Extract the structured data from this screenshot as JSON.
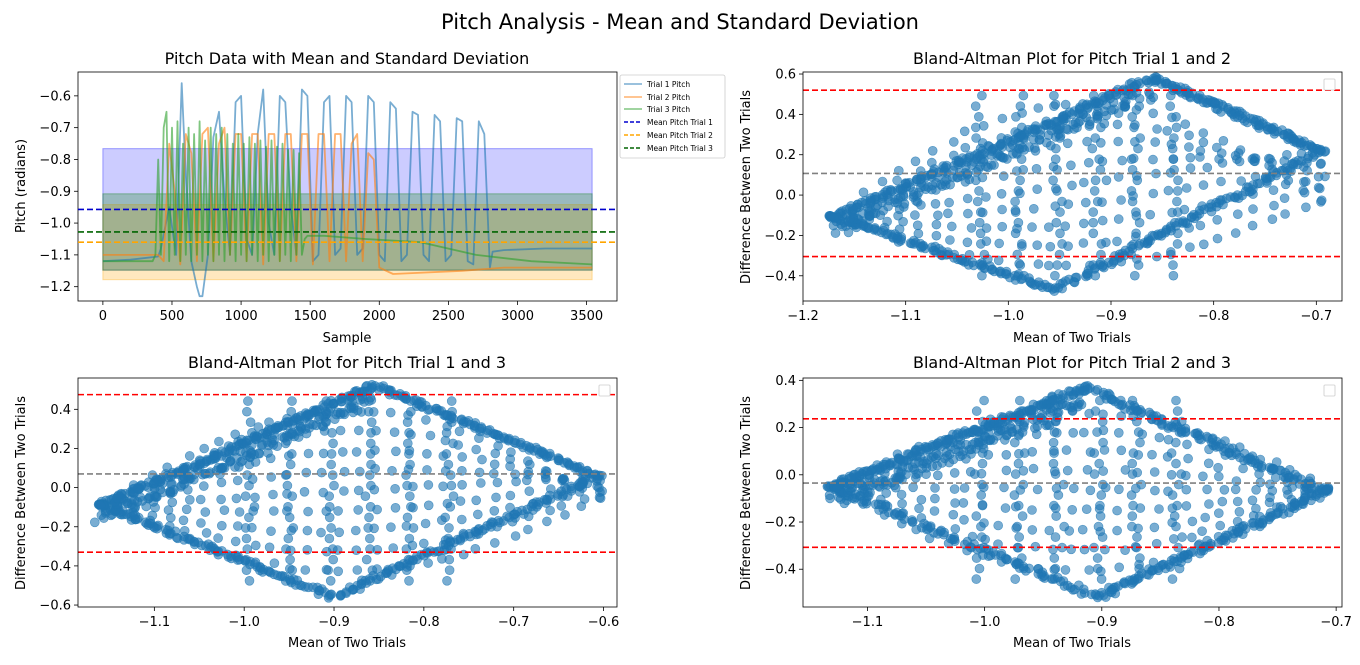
{
  "figure": {
    "suptitle": "Pitch Analysis - Mean and Standard Deviation"
  },
  "chart_data": [
    {
      "id": "p1",
      "type": "line",
      "title": "Pitch Data with Mean and Standard Deviation",
      "xlabel": "Sample",
      "ylabel": "Pitch (radians)",
      "xlim": [
        -180,
        3720
      ],
      "ylim": [
        -1.245,
        -0.525
      ],
      "xticks": [
        0,
        500,
        1000,
        1500,
        2000,
        2500,
        3000,
        3500
      ],
      "yticks": [
        -1.2,
        -1.1,
        -1.0,
        -0.9,
        -0.8,
        -0.7,
        -0.6
      ],
      "ytick_labels": [
        "−1.2",
        "−1.1",
        "−1.0",
        "−0.9",
        "−0.8",
        "−0.7",
        "−0.6"
      ],
      "grid": false,
      "legend_placement": "outside right top",
      "series": [
        {
          "name": "Trial 1 Pitch",
          "color": "#1f77b4",
          "opacity": 0.6,
          "x": [
            0,
            200,
            400,
            420,
            480,
            530,
            570,
            600,
            640,
            680,
            700,
            720,
            760,
            800,
            840,
            880,
            920,
            960,
            1000,
            1040,
            1080,
            1120,
            1160,
            1200,
            1240,
            1280,
            1320,
            1360,
            1400,
            1440,
            1480,
            1520,
            1560,
            1600,
            1640,
            1680,
            1720,
            1760,
            1800,
            1840,
            1880,
            1920,
            1960,
            2000,
            2040,
            2080,
            2120,
            2160,
            2200,
            2240,
            2280,
            2320,
            2360,
            2400,
            2440,
            2480,
            2520,
            2560,
            2600,
            2640,
            2680,
            2720,
            2760,
            2800,
            2820,
            2900,
            3200,
            3540
          ],
          "y": [
            -1.12,
            -1.115,
            -1.105,
            -1.08,
            -0.95,
            -1.1,
            -0.56,
            -0.85,
            -1.12,
            -1.2,
            -1.23,
            -1.23,
            -1.1,
            -0.73,
            -0.65,
            -0.92,
            -1.1,
            -0.62,
            -0.6,
            -1.05,
            -1.1,
            -0.72,
            -0.58,
            -1.0,
            -1.1,
            -0.6,
            -0.62,
            -0.95,
            -1.1,
            -0.58,
            -0.6,
            -1.12,
            -1.1,
            -0.62,
            -0.6,
            -1.1,
            -1.08,
            -0.6,
            -0.62,
            -1.1,
            -1.08,
            -0.6,
            -0.62,
            -1.1,
            -1.12,
            -0.62,
            -0.64,
            -1.12,
            -1.1,
            -0.65,
            -0.66,
            -1.1,
            -1.12,
            -0.66,
            -0.68,
            -1.12,
            -1.1,
            -0.67,
            -0.68,
            -1.12,
            -1.13,
            -0.68,
            -0.72,
            -1.14,
            -1.09,
            -1.085,
            -1.08,
            -1.08
          ]
        },
        {
          "name": "Trial 2 Pitch",
          "color": "#ff7f0e",
          "opacity": 0.6,
          "x": [
            0,
            200,
            400,
            440,
            480,
            520,
            560,
            600,
            640,
            680,
            720,
            760,
            800,
            840,
            880,
            920,
            960,
            1000,
            1040,
            1080,
            1120,
            1160,
            1200,
            1240,
            1280,
            1320,
            1360,
            1400,
            1440,
            1480,
            1520,
            1560,
            1600,
            1640,
            1680,
            1720,
            1760,
            1800,
            1840,
            1880,
            1920,
            1960,
            2000,
            2100,
            2600,
            2900,
            3200,
            3540
          ],
          "y": [
            -1.1,
            -1.1,
            -1.1,
            -1.12,
            -0.75,
            -0.9,
            -1.13,
            -0.72,
            -0.78,
            -1.12,
            -0.72,
            -0.7,
            -1.12,
            -0.75,
            -0.7,
            -1.1,
            -0.72,
            -0.72,
            -1.12,
            -0.72,
            -0.72,
            -1.13,
            -0.72,
            -0.72,
            -1.12,
            -0.72,
            -0.72,
            -1.12,
            -0.72,
            -0.72,
            -1.13,
            -0.72,
            -0.72,
            -1.12,
            -0.72,
            -0.72,
            -1.12,
            -0.75,
            -0.72,
            -1.12,
            -0.78,
            -0.8,
            -1.14,
            -1.16,
            -1.15,
            -1.14,
            -1.14,
            -1.14
          ]
        },
        {
          "name": "Trial 3 Pitch",
          "color": "#2ca02c",
          "opacity": 0.6,
          "x": [
            0,
            200,
            360,
            380,
            400,
            420,
            440,
            460,
            480,
            500,
            520,
            540,
            560,
            580,
            600,
            620,
            640,
            660,
            680,
            700,
            720,
            740,
            760,
            780,
            800,
            820,
            840,
            860,
            880,
            900,
            920,
            940,
            960,
            980,
            1000,
            1020,
            1040,
            1060,
            1080,
            1100,
            1120,
            1140,
            1160,
            1180,
            1200,
            1220,
            1240,
            1260,
            1280,
            1300,
            1320,
            1340,
            1360,
            1380,
            1400,
            1420,
            1440,
            1460,
            1480,
            1600,
            1900,
            2300,
            2700,
            3100,
            3540
          ],
          "y": [
            -1.12,
            -1.12,
            -1.12,
            -1.1,
            -0.8,
            -1.1,
            -0.7,
            -0.65,
            -1.12,
            -0.7,
            -1.1,
            -0.68,
            -1.12,
            -0.75,
            -1.1,
            -0.7,
            -1.12,
            -0.72,
            -1.1,
            -0.68,
            -1.12,
            -0.74,
            -1.1,
            -0.7,
            -1.12,
            -0.72,
            -1.1,
            -0.7,
            -1.12,
            -0.72,
            -1.1,
            -0.75,
            -1.12,
            -0.72,
            -1.1,
            -0.75,
            -1.12,
            -0.73,
            -1.1,
            -0.75,
            -1.12,
            -0.74,
            -1.1,
            -0.76,
            -1.12,
            -0.74,
            -1.1,
            -0.76,
            -1.12,
            -0.75,
            -1.1,
            -0.77,
            -1.12,
            -0.77,
            -1.1,
            -0.78,
            -1.1,
            -1.05,
            -1.04,
            -1.04,
            -1.05,
            -1.06,
            -1.1,
            -1.12,
            -1.13
          ]
        }
      ],
      "hlines": [
        {
          "name": "Mean Pitch Trial 1",
          "y": -0.957,
          "color": "#0000cd",
          "style": "dashed"
        },
        {
          "name": "Mean Pitch Trial 2",
          "y": -1.06,
          "color": "#ffa500",
          "style": "dashed"
        },
        {
          "name": "Mean Pitch Trial 3",
          "y": -1.028,
          "color": "#006400",
          "style": "dashed"
        }
      ],
      "bands": [
        {
          "low": -1.148,
          "high": -0.766,
          "color": "#0000ff",
          "opacity": 0.2
        },
        {
          "low": -1.178,
          "high": -0.942,
          "color": "#ffa500",
          "opacity": 0.25
        },
        {
          "low": -1.148,
          "high": -0.908,
          "color": "#008000",
          "opacity": 0.25
        }
      ]
    },
    {
      "id": "p2",
      "type": "scatter",
      "title": "Bland-Altman Plot for Pitch Trial 1 and 2",
      "xlabel": "Mean of Two Trials",
      "ylabel": "Difference Between Two Trials",
      "xlim": [
        -1.2,
        -0.675
      ],
      "ylim": [
        -0.525,
        0.61
      ],
      "xticks": [
        -1.2,
        -1.1,
        -1.0,
        -0.9,
        -0.8,
        -0.7
      ],
      "xtick_labels": [
        "−1.2",
        "−1.1",
        "−1.0",
        "−0.9",
        "−0.8",
        "−0.7"
      ],
      "yticks": [
        -0.4,
        -0.2,
        0.0,
        0.2,
        0.4,
        0.6
      ],
      "ytick_labels": [
        "−0.4",
        "−0.2",
        "0.0",
        "0.2",
        "0.4",
        "0.6"
      ],
      "mean_diff": 0.107,
      "loa_upper": 0.52,
      "loa_lower": -0.305,
      "point_color": "#1f77b4",
      "legend_placement": "upper right",
      "envelope": {
        "left": [
          -1.17,
          -0.11
        ],
        "top": [
          -0.86,
          0.58
        ],
        "right": [
          -0.695,
          0.22
        ],
        "bottom": [
          -0.955,
          -0.47
        ]
      }
    },
    {
      "id": "p3",
      "type": "scatter",
      "title": "Bland-Altman Plot for Pitch Trial 1 and 3",
      "xlabel": "Mean of Two Trials",
      "ylabel": "Difference Between Two Trials",
      "xlim": [
        -1.185,
        -0.585
      ],
      "ylim": [
        -0.61,
        0.56
      ],
      "xticks": [
        -1.1,
        -1.0,
        -0.9,
        -0.8,
        -0.7,
        -0.6
      ],
      "xtick_labels": [
        "−1.1",
        "−1.0",
        "−0.9",
        "−0.8",
        "−0.7",
        "−0.6"
      ],
      "yticks": [
        -0.6,
        -0.4,
        -0.2,
        0.0,
        0.2,
        0.4
      ],
      "ytick_labels": [
        "−0.6",
        "−0.4",
        "−0.2",
        "0.0",
        "0.2",
        "0.4"
      ],
      "mean_diff": 0.07,
      "loa_upper": 0.475,
      "loa_lower": -0.33,
      "point_color": "#1f77b4",
      "legend_placement": "upper right",
      "envelope": {
        "left": [
          -1.16,
          -0.09
        ],
        "top": [
          -0.855,
          0.52
        ],
        "right": [
          -0.605,
          0.06
        ],
        "bottom": [
          -0.9,
          -0.56
        ]
      }
    },
    {
      "id": "p4",
      "type": "scatter",
      "title": "Bland-Altman Plot for Pitch Trial 2 and 3",
      "xlabel": "Mean of Two Trials",
      "ylabel": "Difference Between Two Trials",
      "xlim": [
        -1.155,
        -0.695
      ],
      "ylim": [
        -0.56,
        0.41
      ],
      "xticks": [
        -1.1,
        -1.0,
        -0.9,
        -0.8,
        -0.7
      ],
      "xtick_labels": [
        "−1.1",
        "−1.0",
        "−0.9",
        "−0.8",
        "−0.7"
      ],
      "yticks": [
        -0.4,
        -0.2,
        0.0,
        0.2,
        0.4
      ],
      "ytick_labels": [
        "−0.4",
        "−0.2",
        "0.0",
        "0.2",
        "0.4"
      ],
      "mean_diff": -0.035,
      "loa_upper": 0.237,
      "loa_lower": -0.307,
      "point_color": "#1f77b4",
      "legend_placement": "upper right",
      "envelope": {
        "left": [
          -1.13,
          -0.05
        ],
        "top": [
          -0.915,
          0.37
        ],
        "right": [
          -0.71,
          -0.07
        ],
        "bottom": [
          -0.905,
          -0.52
        ]
      }
    }
  ]
}
